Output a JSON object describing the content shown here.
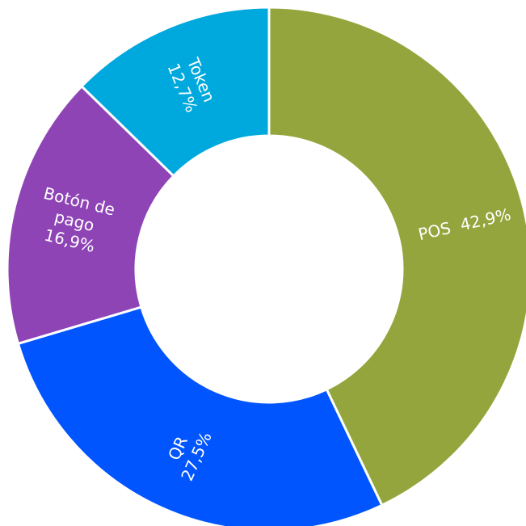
{
  "chart_data": {
    "type": "donut",
    "categories": [
      "POS",
      "QR",
      "Botón de pago",
      "Token"
    ],
    "values": [
      42.9,
      27.5,
      16.9,
      12.7
    ],
    "value_labels": [
      "42,9%",
      "27,5%",
      "16,9%",
      "12,7%"
    ],
    "colors": [
      "#95a53d",
      "#0055ff",
      "#8e44b5",
      "#00a9dd"
    ]
  }
}
